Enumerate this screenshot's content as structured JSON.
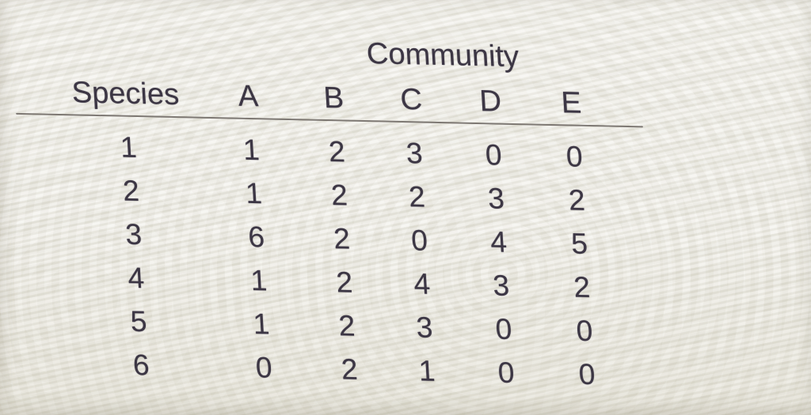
{
  "table": {
    "title": "Community",
    "row_header_label": "Species",
    "columns": [
      "A",
      "B",
      "C",
      "D",
      "E"
    ],
    "rows": [
      {
        "species": "1",
        "values": [
          "1",
          "2",
          "3",
          "0",
          "0"
        ]
      },
      {
        "species": "2",
        "values": [
          "1",
          "2",
          "2",
          "3",
          "2"
        ]
      },
      {
        "species": "3",
        "values": [
          "6",
          "2",
          "0",
          "4",
          "5"
        ]
      },
      {
        "species": "4",
        "values": [
          "1",
          "2",
          "4",
          "3",
          "2"
        ]
      },
      {
        "species": "5",
        "values": [
          "1",
          "2",
          "3",
          "0",
          "0"
        ]
      },
      {
        "species": "6",
        "values": [
          "0",
          "2",
          "1",
          "0",
          "0"
        ]
      }
    ]
  },
  "chart_data": {
    "type": "table",
    "title": "Community",
    "row_label": "Species",
    "columns": [
      "A",
      "B",
      "C",
      "D",
      "E"
    ],
    "species": [
      1,
      2,
      3,
      4,
      5,
      6
    ],
    "rows": [
      [
        1,
        2,
        3,
        0,
        0
      ],
      [
        1,
        2,
        2,
        3,
        2
      ],
      [
        6,
        2,
        0,
        4,
        5
      ],
      [
        1,
        2,
        4,
        3,
        2
      ],
      [
        1,
        2,
        3,
        0,
        0
      ],
      [
        0,
        2,
        1,
        0,
        0
      ]
    ]
  },
  "colors": {
    "background": "#eceae2",
    "text": "#3c3644",
    "rule_line": "#6a645f"
  }
}
